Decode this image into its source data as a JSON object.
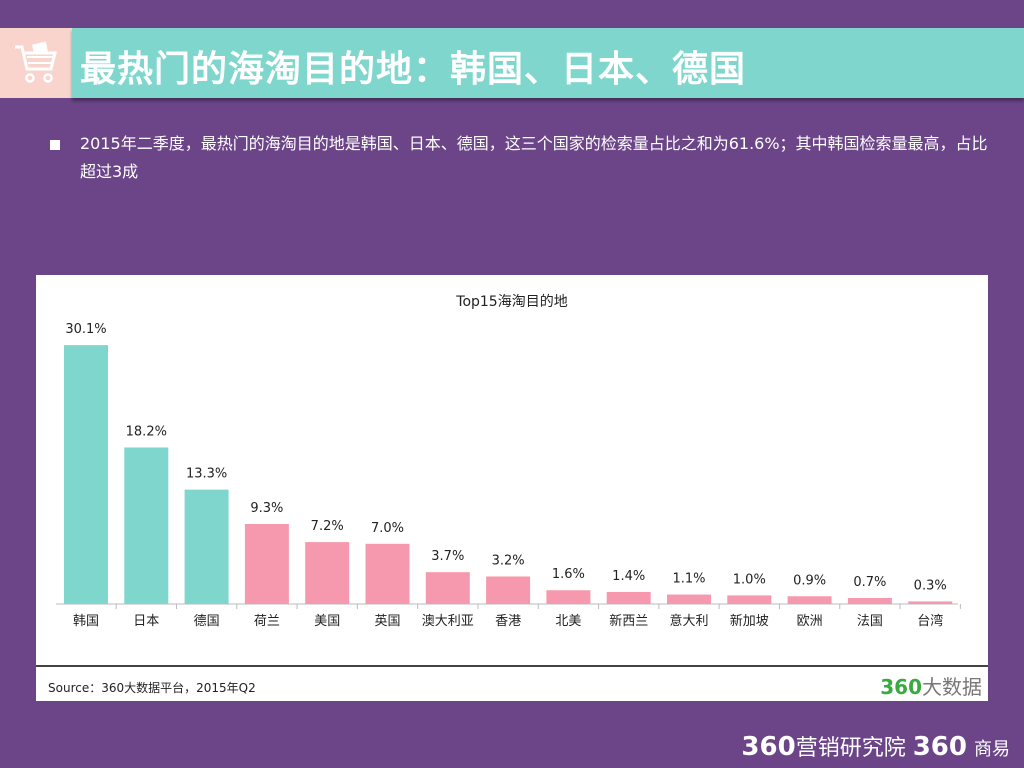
{
  "header": {
    "title": "最热门的海淘目的地：韩国、日本、德国",
    "icon": "shopping-cart-icon"
  },
  "bullet": {
    "text": "2015年二季度，最热门的海淘目的地是韩国、日本、德国，这三个国家的检索量占比之和为61.6%；其中韩国检索量最高，占比超过3成"
  },
  "chart_data": {
    "type": "bar",
    "title": "Top15海淘目的地",
    "categories": [
      "韩国",
      "日本",
      "德国",
      "荷兰",
      "美国",
      "英国",
      "澳大利亚",
      "香港",
      "北美",
      "新西兰",
      "意大利",
      "新加坡",
      "欧洲",
      "法国",
      "台湾"
    ],
    "values": [
      30.1,
      18.2,
      13.3,
      9.3,
      7.2,
      7.0,
      3.7,
      3.2,
      1.6,
      1.4,
      1.1,
      1.0,
      0.9,
      0.7,
      0.3
    ],
    "labels": [
      "30.1%",
      "18.2%",
      "13.3%",
      "9.3%",
      "7.2%",
      "7.0%",
      "3.7%",
      "3.2%",
      "1.6%",
      "1.4%",
      "1.1%",
      "1.0%",
      "0.9%",
      "0.7%",
      "0.3%"
    ],
    "colors": {
      "top3": "#7fd6cd",
      "rest": "#f799ae"
    },
    "grid": false
  },
  "source": "Source：360大数据平台，2015年Q2",
  "logo": {
    "num": "360",
    "text": "大数据"
  },
  "footer": {
    "num1": "360",
    "text1": "营销研究院",
    "num2": "360",
    "text2": "商易"
  }
}
